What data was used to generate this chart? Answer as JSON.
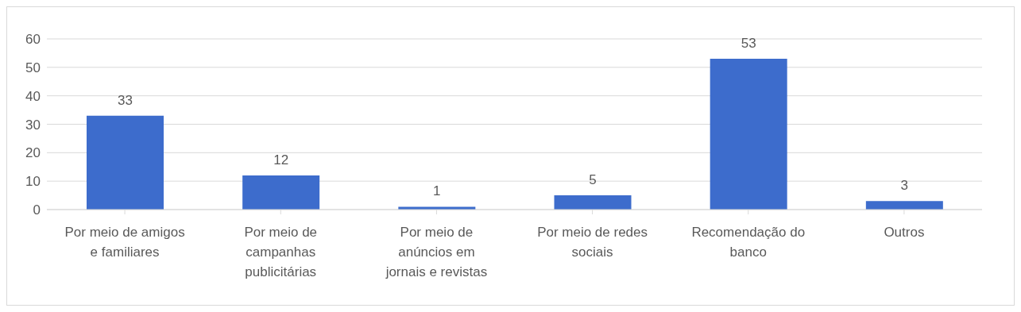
{
  "chart_data": {
    "type": "bar",
    "categories": [
      "Por meio de amigos e familiares",
      "Por meio de campanhas publicitárias",
      "Por meio de anúncios em jornais e revistas",
      "Por meio de redes sociais",
      "Recomendação do banco",
      "Outros"
    ],
    "values": [
      33,
      12,
      1,
      5,
      53,
      3
    ],
    "color": "#3d6ccc",
    "ylim": [
      0,
      60
    ],
    "yticks": [
      0,
      10,
      20,
      30,
      40,
      50,
      60
    ],
    "grid": "y",
    "data_labels": true,
    "legend": false
  }
}
